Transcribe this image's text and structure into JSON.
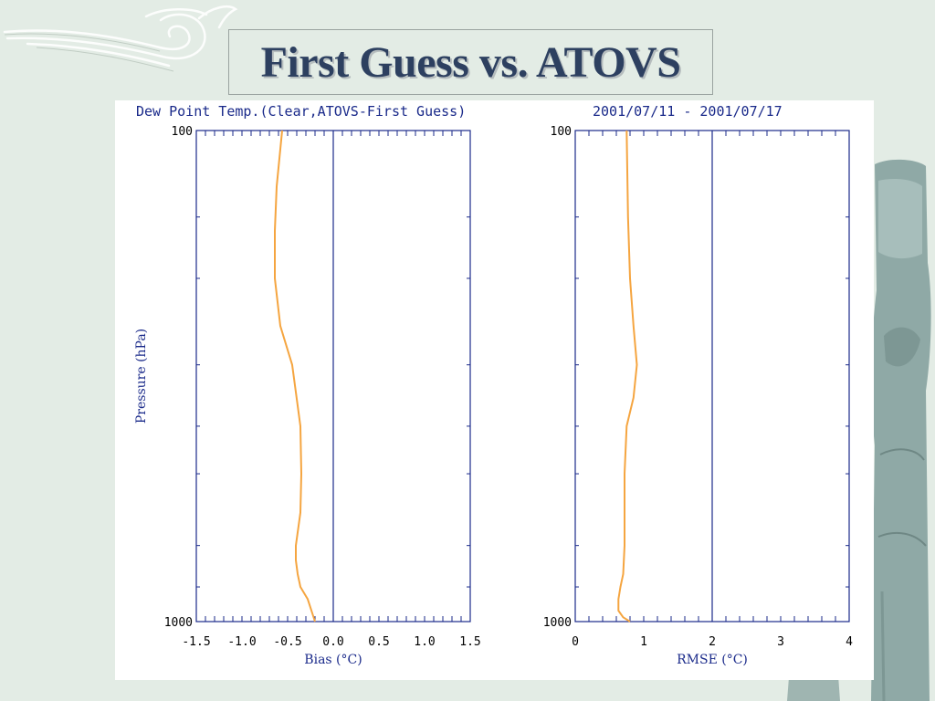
{
  "slide": {
    "title": "First Guess vs. ATOVS"
  },
  "figure": {
    "header_left": "Dew Point Temp.(Clear,ATOVS-First Guess)",
    "header_right": "2001/07/11 - 2001/07/17"
  },
  "colors": {
    "axis": "#1a2a8a",
    "curve": "#f5a540",
    "title": "#2d4060"
  },
  "chart_data": [
    {
      "type": "line",
      "xlabel": "Bias (°C)",
      "ylabel": "Pressure (hPa)",
      "xlim": [
        -1.5,
        1.5
      ],
      "ylim": [
        1000,
        100
      ],
      "xticks": [
        "-1.5",
        "-1.0",
        "-0.5",
        "0.0",
        "0.5",
        "1.0",
        "1.5"
      ],
      "yticks": [
        "100",
        "1000"
      ],
      "reference_x": 0.0,
      "series": [
        {
          "x": [
            -0.56,
            -0.62,
            -0.64,
            -0.64,
            -0.58,
            -0.45,
            -0.36,
            -0.35,
            -0.36,
            -0.41,
            -0.41,
            -0.39,
            -0.36,
            -0.28,
            -0.2
          ],
          "y": [
            100,
            130,
            160,
            200,
            250,
            300,
            400,
            500,
            600,
            700,
            750,
            800,
            850,
            900,
            1000
          ]
        }
      ]
    },
    {
      "type": "line",
      "xlabel": "RMSE (°C)",
      "ylabel": "",
      "xlim": [
        0,
        4
      ],
      "ylim": [
        1000,
        100
      ],
      "xticks": [
        "0",
        "1",
        "2",
        "3",
        "4"
      ],
      "yticks": [
        "100",
        "1000"
      ],
      "reference_x": 2,
      "series": [
        {
          "x": [
            0.75,
            0.77,
            0.8,
            0.85,
            0.9,
            0.85,
            0.75,
            0.72,
            0.72,
            0.72,
            0.7,
            0.66,
            0.63,
            0.63,
            0.7,
            0.8
          ],
          "y": [
            100,
            150,
            200,
            250,
            300,
            350,
            400,
            500,
            600,
            700,
            800,
            850,
            900,
            950,
            980,
            1000
          ]
        }
      ]
    }
  ]
}
